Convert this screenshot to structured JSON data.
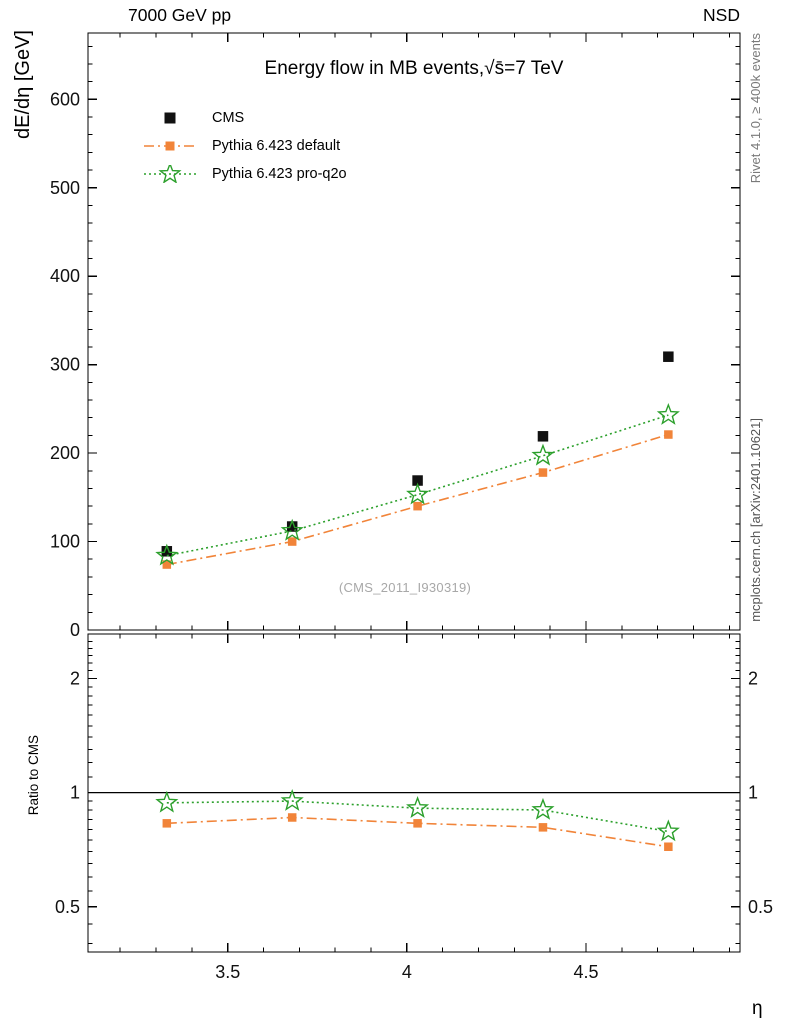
{
  "header": {
    "left": "7000 GeV pp",
    "right": "NSD"
  },
  "side": {
    "top_right": "Rivet 4.1.0, ≥ 400k events",
    "bottom_right": "mcplots.cern.ch [arXiv:2401.10621]"
  },
  "watermark": "(CMS_2011_I930319)",
  "main_panel": {
    "title": "Energy flow in MB events,√s̄=7 TeV",
    "ylabel": "dE/dη [GeV]"
  },
  "ratio_panel": {
    "ylabel": "Ratio to CMS"
  },
  "xlabel": "η",
  "chart_data": [
    {
      "type": "line",
      "panel": "main",
      "title": "Energy flow in MB events, sqrt(s)=7 TeV",
      "ylabel": "dE/dη [GeV]",
      "x": [
        3.33,
        3.68,
        4.03,
        4.38,
        4.73
      ],
      "series": [
        {
          "name": "CMS",
          "values": [
            89,
            117,
            169,
            219,
            309
          ],
          "color": "#111111",
          "marker": "square-filled",
          "line": "none"
        },
        {
          "name": "Pythia 6.423 default",
          "values": [
            74,
            100,
            140,
            178,
            221
          ],
          "color": "#f18439",
          "marker": "square-filled",
          "line": "dashdot"
        },
        {
          "name": "Pythia 6.423 pro-q2o",
          "values": [
            84,
            112,
            153,
            197,
            243
          ],
          "color": "#2ca02c",
          "marker": "star-open",
          "line": "dotted"
        }
      ],
      "xlim": [
        3.11,
        4.93
      ],
      "ylim": [
        0,
        675
      ],
      "yticks": [
        0,
        100,
        200,
        300,
        400,
        500,
        600
      ],
      "legend_position": "top-left",
      "grid": false
    },
    {
      "type": "line",
      "panel": "ratio",
      "ylabel": "Ratio to CMS",
      "yscale": "log2",
      "x": [
        3.33,
        3.68,
        4.03,
        4.38,
        4.73
      ],
      "series": [
        {
          "name": "Pythia 6.423 default",
          "values": [
            0.83,
            0.86,
            0.83,
            0.81,
            0.72
          ],
          "color": "#f18439",
          "marker": "square-filled",
          "line": "dashdot"
        },
        {
          "name": "Pythia 6.423 pro-q2o",
          "values": [
            0.94,
            0.95,
            0.91,
            0.9,
            0.79
          ],
          "color": "#2ca02c",
          "marker": "star-open",
          "line": "dotted"
        }
      ],
      "refline": 1,
      "xlim": [
        3.11,
        4.93
      ],
      "ylim": [
        0.38,
        2.62
      ],
      "yticks": [
        0.5,
        1,
        2
      ],
      "xticks": [
        3.5,
        4,
        4.5
      ],
      "xlabel": "η",
      "grid": false
    }
  ]
}
